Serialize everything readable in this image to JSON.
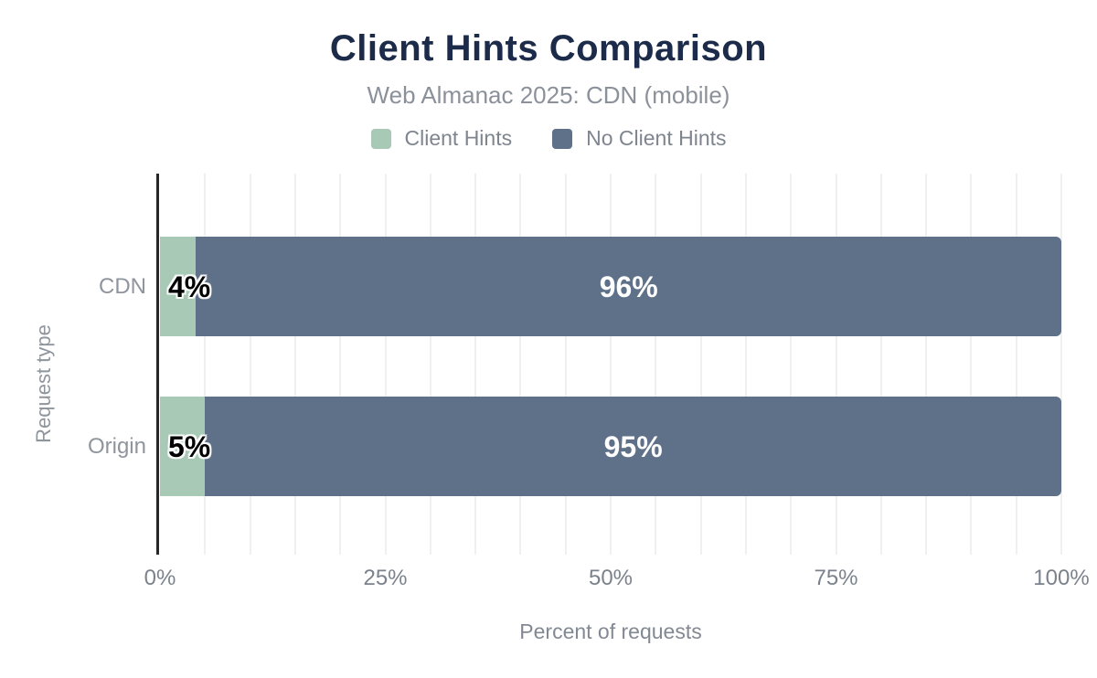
{
  "header": {
    "title": "Client Hints Comparison",
    "subtitle": "Web Almanac 2025: CDN (mobile)"
  },
  "colors": {
    "title": "#1b2b49",
    "client_hints_green": "#a7c9b5",
    "no_client_hints_slate": "#5f7189",
    "gridline": "#f0f0f0",
    "axis_line": "#272727",
    "muted_text": "#8f959d",
    "background": "#ffffff"
  },
  "chart_data": {
    "type": "bar",
    "orientation": "horizontal",
    "stacked": true,
    "title": "Client Hints Comparison",
    "subtitle": "Web Almanac 2025: CDN (mobile)",
    "categories": [
      "CDN",
      "Origin"
    ],
    "series": [
      {
        "name": "Client Hints",
        "color": "#a7c9b5",
        "values": [
          4,
          5
        ]
      },
      {
        "name": "No Client Hints",
        "color": "#5f7189",
        "values": [
          96,
          95
        ]
      }
    ],
    "labels": [
      [
        "4%",
        "96%"
      ],
      [
        "5%",
        "95%"
      ]
    ],
    "xlabel": "Percent of requests",
    "ylabel": "Request type",
    "xlim": [
      0,
      100
    ],
    "x_ticks": [
      "0%",
      "25%",
      "50%",
      "75%",
      "100%"
    ],
    "x_tick_values": [
      0,
      25,
      50,
      75,
      100
    ],
    "grid_step": 5,
    "grid": "vertical-minor",
    "legend_position": "top"
  }
}
